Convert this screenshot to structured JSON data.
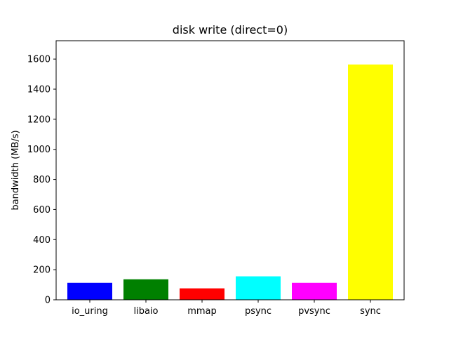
{
  "chart_data": {
    "type": "bar",
    "title": "disk write (direct=0)",
    "xlabel": "",
    "ylabel": "bandwidth (MB/s)",
    "categories": [
      "io_uring",
      "libaio",
      "mmap",
      "psync",
      "pvsync",
      "sync"
    ],
    "values": [
      113,
      136,
      76,
      156,
      113,
      1564
    ],
    "colors": [
      "#0000ff",
      "#008000",
      "#ff0000",
      "#00ffff",
      "#ff00ff",
      "#ffff00"
    ],
    "ylim": [
      0,
      1722
    ],
    "yticks": [
      0,
      200,
      400,
      600,
      800,
      1000,
      1200,
      1400,
      1600
    ],
    "grid": false,
    "legend": false
  }
}
